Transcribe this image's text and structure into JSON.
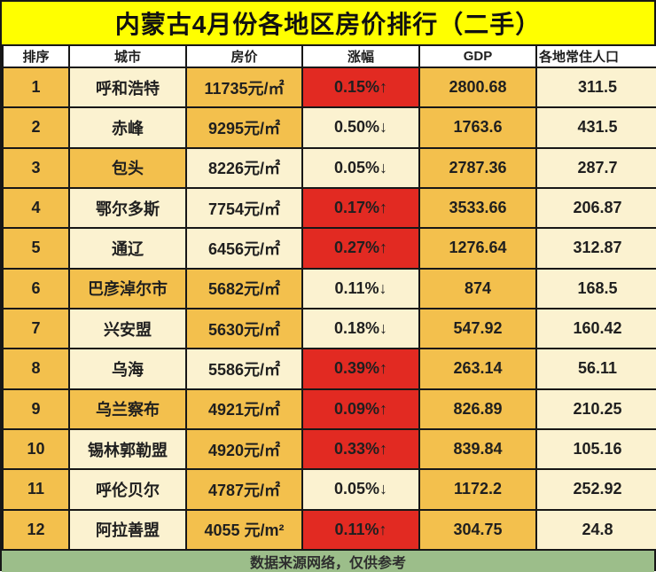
{
  "title": "内蒙古4月份各地区房价排行（二手）",
  "footer": "数据来源网络，仅供参考",
  "colors": {
    "title_bg": "#FFFF00",
    "header_bg": "#FFFFFF",
    "gold_cell": "#F3C04D",
    "cream_cell": "#FBF2D0",
    "rise_cell_red": "#E22A22",
    "footer_bg": "#9CBE8A",
    "border": "#171717",
    "text": "#1F1F1F"
  },
  "chart_data": {
    "type": "table",
    "title": "内蒙古4月份各地区房价排行（二手）",
    "columns": [
      "排序",
      "城市",
      "房价",
      "涨幅",
      "GDP",
      "各地常住人口"
    ],
    "rows": [
      {
        "rank": "1",
        "city": "呼和浩特",
        "price": "11735元/㎡",
        "change": "0.15%↑",
        "trend": "up",
        "gdp": "2800.68",
        "population": "311.5"
      },
      {
        "rank": "2",
        "city": "赤峰",
        "price": "9295元/㎡",
        "change": "0.50%↓",
        "trend": "down",
        "gdp": "1763.6",
        "population": "431.5"
      },
      {
        "rank": "3",
        "city": "包头",
        "price": "8226元/㎡",
        "change": "0.05%↓",
        "trend": "down",
        "gdp": "2787.36",
        "population": "287.7"
      },
      {
        "rank": "4",
        "city": "鄂尔多斯",
        "price": "7754元/㎡",
        "change": "0.17%↑",
        "trend": "up",
        "gdp": "3533.66",
        "population": "206.87"
      },
      {
        "rank": "5",
        "city": "通辽",
        "price": "6456元/㎡",
        "change": "0.27%↑",
        "trend": "up",
        "gdp": "1276.64",
        "population": "312.87"
      },
      {
        "rank": "6",
        "city": "巴彦淖尔市",
        "price": "5682元/㎡",
        "change": "0.11%↓",
        "trend": "down",
        "gdp": "874",
        "population": "168.5"
      },
      {
        "rank": "7",
        "city": "兴安盟",
        "price": "5630元/㎡",
        "change": "0.18%↓",
        "trend": "down",
        "gdp": "547.92",
        "population": "160.42"
      },
      {
        "rank": "8",
        "city": "乌海",
        "price": "5586元/㎡",
        "change": "0.39%↑",
        "trend": "up",
        "gdp": "263.14",
        "population": "56.11"
      },
      {
        "rank": "9",
        "city": "乌兰察布",
        "price": "4921元/㎡",
        "change": "0.09%↑",
        "trend": "up",
        "gdp": "826.89",
        "population": "210.25"
      },
      {
        "rank": "10",
        "city": "锡林郭勒盟",
        "price": "4920元/㎡",
        "change": "0.33%↑",
        "trend": "up",
        "gdp": "839.84",
        "population": "105.16"
      },
      {
        "rank": "11",
        "city": "呼伦贝尔",
        "price": "4787元/㎡",
        "change": "0.05%↓",
        "trend": "down",
        "gdp": "1172.2",
        "population": "252.92"
      },
      {
        "rank": "12",
        "city": "阿拉善盟",
        "price": "4055 元/m²",
        "change": "0.11%↑",
        "trend": "up",
        "gdp": "304.75",
        "population": "24.8"
      }
    ]
  }
}
